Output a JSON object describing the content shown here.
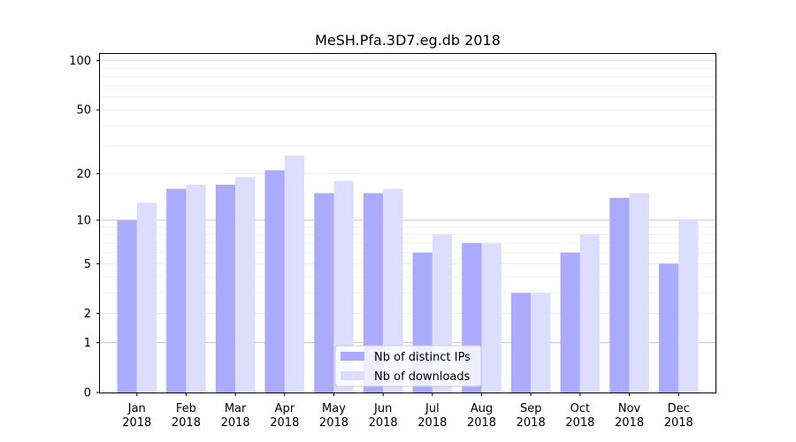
{
  "chart_data": {
    "type": "bar",
    "title": "MeSH.Pfa.3D7.eg.db 2018",
    "xlabel": "",
    "ylabel": "",
    "yscale": "symlog",
    "ylim": [
      0,
      110
    ],
    "yticks": [
      0,
      1,
      2,
      5,
      10,
      20,
      50,
      100
    ],
    "ytick_labels": [
      "0",
      "1",
      "2",
      "5",
      "10",
      "20",
      "50",
      "100"
    ],
    "categories": [
      [
        "Jan",
        "2018"
      ],
      [
        "Feb",
        "2018"
      ],
      [
        "Mar",
        "2018"
      ],
      [
        "Apr",
        "2018"
      ],
      [
        "May",
        "2018"
      ],
      [
        "Jun",
        "2018"
      ],
      [
        "Jul",
        "2018"
      ],
      [
        "Aug",
        "2018"
      ],
      [
        "Sep",
        "2018"
      ],
      [
        "Oct",
        "2018"
      ],
      [
        "Nov",
        "2018"
      ],
      [
        "Dec",
        "2018"
      ]
    ],
    "series": [
      {
        "name": "Nb of distinct IPs",
        "color": "#aaaaff",
        "values": [
          10,
          16,
          17,
          21,
          15,
          15,
          6,
          7,
          3,
          6,
          14,
          5
        ]
      },
      {
        "name": "Nb of downloads",
        "color": "#ddddff",
        "values": [
          13,
          17,
          19,
          26,
          18,
          16,
          8,
          7,
          3,
          8,
          15,
          10
        ]
      }
    ],
    "legend": "bottom-center",
    "grid": true
  }
}
